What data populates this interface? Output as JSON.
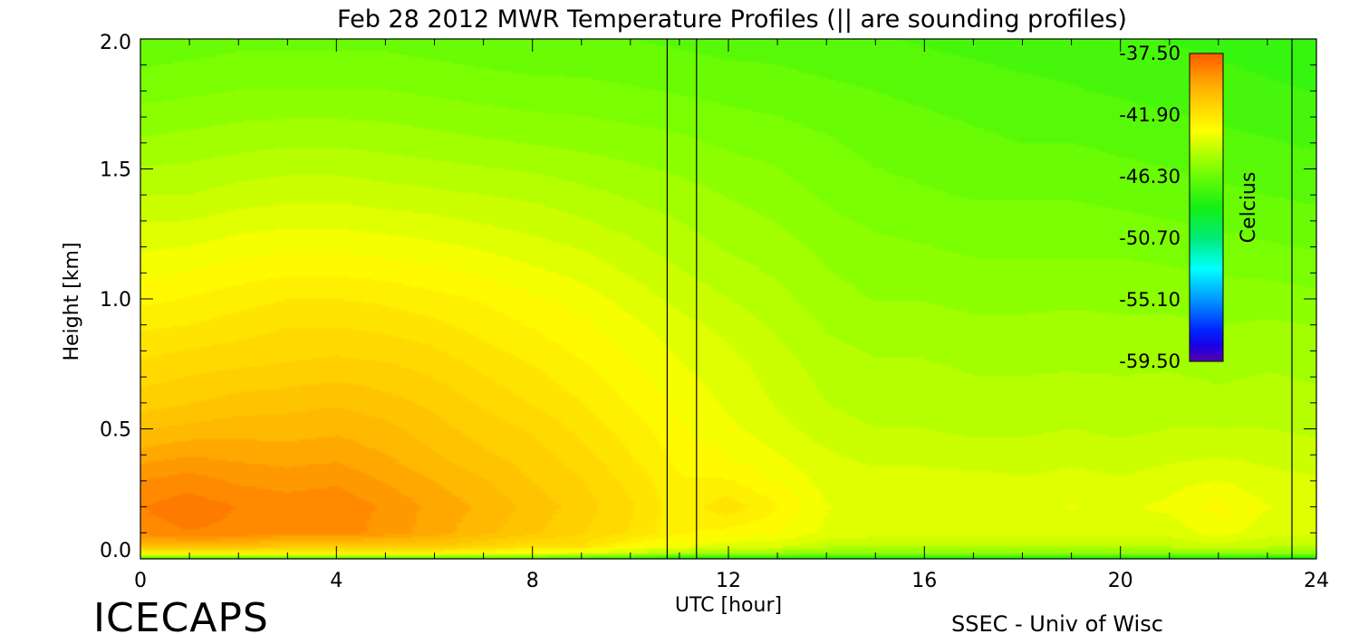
{
  "chart_data": {
    "type": "heatmap",
    "title": "Feb 28 2012 MWR Temperature Profiles (|| are sounding profiles)",
    "xlabel": "UTC [hour]",
    "ylabel": "Height [km]",
    "xlim": [
      0,
      24
    ],
    "ylim": [
      0,
      2.0
    ],
    "x_ticks": [
      "0",
      "4",
      "8",
      "12",
      "16",
      "20",
      "24"
    ],
    "y_ticks": [
      "0.0",
      "0.5",
      "1.0",
      "1.5",
      "2.0"
    ],
    "colorbar": {
      "label": "Celcius",
      "min": -59.5,
      "max": -37.5,
      "tick_labels": [
        "-37.50",
        "-41.90",
        "-46.30",
        "-50.70",
        "-55.10",
        "-59.50"
      ],
      "colormap": "rainbow"
    },
    "sounding_times_utc": [
      10.75,
      11.35,
      23.5
    ],
    "x": [
      0,
      1,
      2,
      3,
      4,
      5,
      6,
      7,
      8,
      9,
      10,
      11,
      12,
      13,
      14,
      15,
      16,
      17,
      18,
      19,
      20,
      21,
      22,
      23,
      24
    ],
    "heights_km": [
      0.0,
      0.02,
      0.05,
      0.1,
      0.2,
      0.3,
      0.4,
      0.5,
      0.6,
      0.75,
      0.9,
      1.0,
      1.2,
      1.4,
      1.6,
      1.8,
      2.0
    ],
    "z": [
      [
        -47.0,
        -47.0,
        -47.0,
        -47.0,
        -47.0,
        -47.0,
        -47.0,
        -47.0,
        -47.0,
        -47.5,
        -48.0,
        -49.0,
        -48.5,
        -48.5,
        -48.5,
        -48.5,
        -48.5,
        -48.5,
        -48.5,
        -48.5,
        -48.5,
        -48.5,
        -48.5,
        -48.8,
        -49.0
      ],
      [
        -42.5,
        -42.5,
        -42.5,
        -42.5,
        -42.5,
        -42.5,
        -42.5,
        -43.0,
        -43.0,
        -43.5,
        -44.0,
        -44.5,
        -45.0,
        -45.0,
        -45.5,
        -45.5,
        -45.5,
        -45.5,
        -45.5,
        -45.5,
        -45.5,
        -45.5,
        -45.5,
        -45.5,
        -45.5
      ],
      [
        -40.0,
        -40.0,
        -40.0,
        -40.5,
        -40.5,
        -40.5,
        -40.5,
        -41.0,
        -41.5,
        -41.5,
        -42.5,
        -43.0,
        -43.5,
        -43.5,
        -44.0,
        -44.0,
        -44.0,
        -44.0,
        -44.0,
        -44.0,
        -44.0,
        -44.0,
        -43.8,
        -44.0,
        -44.0
      ],
      [
        -38.6,
        -38.4,
        -38.5,
        -38.8,
        -38.6,
        -39.0,
        -39.5,
        -40.0,
        -40.5,
        -41.0,
        -41.5,
        -42.3,
        -42.5,
        -42.8,
        -43.3,
        -43.5,
        -43.5,
        -43.5,
        -43.5,
        -43.5,
        -43.5,
        -43.5,
        -43.0,
        -43.5,
        -43.5
      ],
      [
        -38.4,
        -38.1,
        -38.4,
        -38.6,
        -38.5,
        -38.9,
        -39.4,
        -39.8,
        -40.3,
        -40.8,
        -41.4,
        -42.2,
        -41.6,
        -42.3,
        -43.2,
        -43.3,
        -43.3,
        -43.3,
        -43.3,
        -43.2,
        -43.3,
        -43.1,
        -42.6,
        -43.2,
        -43.3
      ],
      [
        -38.8,
        -38.6,
        -38.9,
        -39.0,
        -38.9,
        -39.3,
        -39.7,
        -40.1,
        -40.6,
        -41.0,
        -41.6,
        -42.3,
        -42.3,
        -42.8,
        -43.4,
        -43.5,
        -43.5,
        -43.5,
        -43.6,
        -43.5,
        -43.6,
        -43.4,
        -43.2,
        -43.5,
        -43.6
      ],
      [
        -39.5,
        -39.3,
        -39.4,
        -39.5,
        -39.4,
        -39.7,
        -40.1,
        -40.5,
        -40.8,
        -41.3,
        -41.9,
        -42.5,
        -42.8,
        -43.2,
        -43.6,
        -43.8,
        -43.8,
        -43.9,
        -43.9,
        -43.8,
        -43.9,
        -43.8,
        -43.7,
        -43.8,
        -43.9
      ],
      [
        -40.2,
        -40.0,
        -39.9,
        -39.9,
        -39.8,
        -40.0,
        -40.4,
        -40.8,
        -41.1,
        -41.6,
        -42.1,
        -42.7,
        -43.1,
        -43.5,
        -43.9,
        -44.1,
        -44.1,
        -44.2,
        -44.2,
        -44.1,
        -44.2,
        -44.1,
        -44.1,
        -44.1,
        -44.2
      ],
      [
        -40.8,
        -40.6,
        -40.4,
        -40.3,
        -40.2,
        -40.4,
        -40.7,
        -41.1,
        -41.5,
        -41.9,
        -42.4,
        -42.9,
        -43.3,
        -43.7,
        -44.1,
        -44.3,
        -44.3,
        -44.4,
        -44.4,
        -44.3,
        -44.4,
        -44.3,
        -44.4,
        -44.3,
        -44.4
      ],
      [
        -41.4,
        -41.2,
        -41.1,
        -41.0,
        -40.9,
        -41.0,
        -41.2,
        -41.6,
        -41.9,
        -42.3,
        -42.7,
        -43.2,
        -43.5,
        -43.9,
        -44.3,
        -44.5,
        -44.5,
        -44.6,
        -44.6,
        -44.6,
        -44.6,
        -44.6,
        -44.7,
        -44.6,
        -44.7
      ],
      [
        -42.0,
        -41.9,
        -41.7,
        -41.5,
        -41.5,
        -41.6,
        -41.8,
        -42.1,
        -42.4,
        -42.7,
        -43.1,
        -43.5,
        -43.8,
        -44.2,
        -44.6,
        -44.8,
        -44.8,
        -44.9,
        -44.9,
        -44.8,
        -44.9,
        -44.9,
        -45.0,
        -44.9,
        -45.0
      ],
      [
        -42.5,
        -42.3,
        -42.1,
        -41.9,
        -41.9,
        -42.0,
        -42.2,
        -42.4,
        -42.7,
        -43.0,
        -43.4,
        -43.8,
        -44.1,
        -44.4,
        -44.8,
        -45.0,
        -45.0,
        -45.1,
        -45.1,
        -45.1,
        -45.1,
        -45.1,
        -45.2,
        -45.2,
        -45.3
      ],
      [
        -43.3,
        -43.2,
        -43.0,
        -42.9,
        -42.9,
        -43.0,
        -43.1,
        -43.3,
        -43.5,
        -43.7,
        -44.0,
        -44.3,
        -44.6,
        -44.8,
        -45.1,
        -45.3,
        -45.4,
        -45.5,
        -45.5,
        -45.5,
        -45.5,
        -45.6,
        -45.7,
        -45.8,
        -45.9
      ],
      [
        -44.1,
        -44.1,
        -43.9,
        -43.8,
        -43.8,
        -43.9,
        -44.0,
        -44.1,
        -44.2,
        -44.4,
        -44.6,
        -44.8,
        -45.0,
        -45.2,
        -45.5,
        -45.7,
        -45.8,
        -45.9,
        -45.9,
        -45.9,
        -46.0,
        -46.1,
        -46.2,
        -46.3,
        -46.4
      ],
      [
        -44.9,
        -44.8,
        -44.7,
        -44.6,
        -44.6,
        -44.7,
        -44.8,
        -44.9,
        -45.0,
        -45.1,
        -45.2,
        -45.3,
        -45.5,
        -45.6,
        -45.8,
        -46.0,
        -46.1,
        -46.2,
        -46.3,
        -46.3,
        -46.4,
        -46.5,
        -46.6,
        -46.7,
        -46.8
      ],
      [
        -45.6,
        -45.5,
        -45.4,
        -45.4,
        -45.4,
        -45.4,
        -45.5,
        -45.6,
        -45.7,
        -45.7,
        -45.8,
        -45.9,
        -46.0,
        -46.1,
        -46.2,
        -46.3,
        -46.4,
        -46.5,
        -46.6,
        -46.7,
        -46.8,
        -46.9,
        -47.0,
        -47.1,
        -47.2
      ],
      [
        -46.2,
        -46.1,
        -46.0,
        -46.0,
        -46.0,
        -46.0,
        -46.1,
        -46.2,
        -46.2,
        -46.3,
        -46.3,
        -46.4,
        -46.5,
        -46.5,
        -46.6,
        -46.7,
        -46.8,
        -46.9,
        -47.0,
        -47.0,
        -47.1,
        -47.2,
        -47.3,
        -47.4,
        -47.5
      ]
    ]
  },
  "footer": {
    "logo_text": "ICECAPS",
    "credit": "SSEC - Univ of Wisc"
  }
}
